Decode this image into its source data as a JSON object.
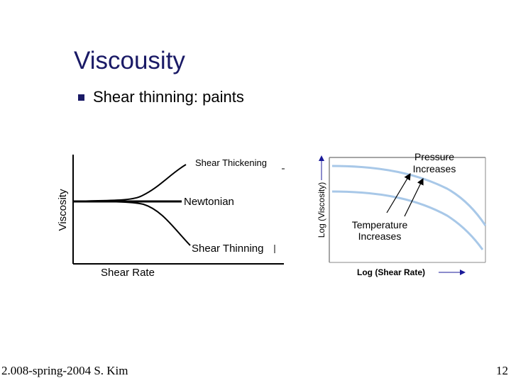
{
  "slide": {
    "title": "Viscousity",
    "bullet": "Shear thinning:  paints",
    "footer_left": "2.008-spring-2004  S. Kim",
    "page_number": "12"
  },
  "left_diagram": {
    "y_label": "Viscosity",
    "x_label": "Shear Rate",
    "curves": {
      "thickening": "Shear Thickening",
      "newtonian": "Newtonian",
      "thinning": "Shear Thinning"
    }
  },
  "right_diagram": {
    "y_label": "Log (Viscosity)",
    "x_label": "Log (Shear Rate)",
    "annotations": {
      "pressure_line1": "Pressure",
      "pressure_line2": "Increases",
      "temperature_line1": "Temperature",
      "temperature_line2": "Increases"
    },
    "curve_color": "#a8c8e8"
  }
}
